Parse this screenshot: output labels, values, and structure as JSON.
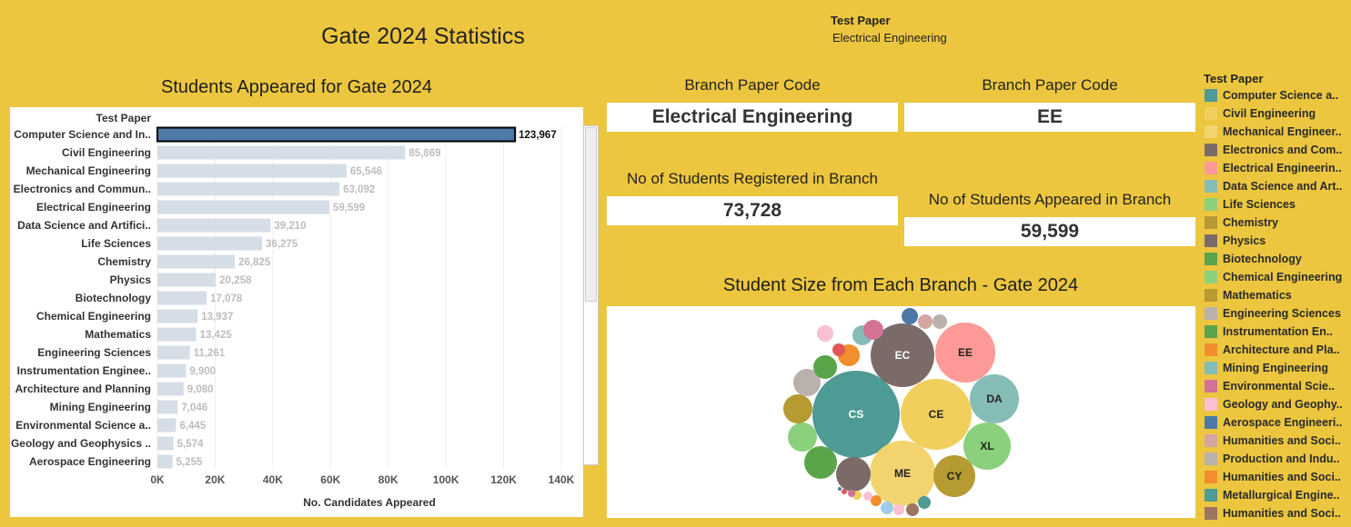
{
  "dashboard": {
    "title": "Gate 2024 Statistics",
    "filter_title": "Test Paper",
    "filter_value": "Electrical Engineering"
  },
  "bar_section": {
    "title": "Students Appeared for Gate 2024",
    "row_header": "Test Paper"
  },
  "kpi": {
    "label1": "Branch Paper Code",
    "value1": "Electrical Engineering",
    "label2": "Branch Paper Code",
    "value2": "EE",
    "label3": "No of Students Registered in Branch",
    "value3": "73,728",
    "label4": "No of Students Appeared in Branch",
    "value4": "59,599"
  },
  "bubble_section": {
    "title": "Student Size from Each Branch - Gate 2024"
  },
  "legend": {
    "title": "Test Paper",
    "items": [
      {
        "label": "Computer Science a..",
        "color": "#4e9a94"
      },
      {
        "label": "Civil Engineering",
        "color": "#f1cf5d"
      },
      {
        "label": "Mechanical Engineer..",
        "color": "#f2d36e"
      },
      {
        "label": "Electronics and Com..",
        "color": "#7a6b69"
      },
      {
        "label": "Electrical Engineerin..",
        "color": "#fd9a97"
      },
      {
        "label": "Data Science and Art..",
        "color": "#86bcb6"
      },
      {
        "label": "Life Sciences",
        "color": "#8bd17d"
      },
      {
        "label": "Chemistry",
        "color": "#b69a32"
      },
      {
        "label": "Physics",
        "color": "#7a6b69"
      },
      {
        "label": "Biotechnology",
        "color": "#5aa54a"
      },
      {
        "label": "Chemical Engineering",
        "color": "#8bd17d"
      },
      {
        "label": "Mathematics",
        "color": "#b69a32"
      },
      {
        "label": "Engineering Sciences",
        "color": "#bab0ac"
      },
      {
        "label": "Instrumentation En..",
        "color": "#5aa54a"
      },
      {
        "label": "Architecture and Pla..",
        "color": "#f28e2b"
      },
      {
        "label": "Mining Engineering",
        "color": "#86bcb6"
      },
      {
        "label": "Environmental Scie..",
        "color": "#d37295"
      },
      {
        "label": "Geology and Geophy..",
        "color": "#fabfd2"
      },
      {
        "label": "Aerospace Engineeri..",
        "color": "#4e79a7"
      },
      {
        "label": "Humanities and Soci..",
        "color": "#d4a6a0"
      },
      {
        "label": "Production and Indu..",
        "color": "#bab0ac"
      },
      {
        "label": "Humanities and Soci..",
        "color": "#f28e2b"
      },
      {
        "label": "Metallurgical Engine..",
        "color": "#4e9a94"
      },
      {
        "label": "Humanities and Soci..",
        "color": "#9c755f"
      }
    ]
  },
  "chart_data": [
    {
      "type": "bar",
      "orientation": "horizontal",
      "title": "Students Appeared for Gate 2024",
      "xlabel": "No. Candidates Appeared",
      "ylabel": "Test Paper",
      "xlim": [
        0,
        140000
      ],
      "xticks": [
        "0K",
        "20K",
        "40K",
        "60K",
        "80K",
        "100K",
        "120K",
        "140K"
      ],
      "categories": [
        "Computer Science and In..",
        "Civil Engineering",
        "Mechanical Engineering",
        "Electronics and Commun..",
        "Electrical Engineering",
        "Data Science and Artifici..",
        "Life Sciences",
        "Chemistry",
        "Physics",
        "Biotechnology",
        "Chemical Engineering",
        "Mathematics",
        "Engineering Sciences",
        "Instrumentation Enginee..",
        "Architecture and Planning",
        "Mining Engineering",
        "Environmental Science a..",
        "Geology and Geophysics ..",
        "Aerospace Engineering"
      ],
      "values": [
        123967,
        85869,
        65546,
        63092,
        59599,
        39210,
        36275,
        26825,
        20258,
        17078,
        13937,
        13425,
        11261,
        9900,
        9080,
        7046,
        6445,
        5574,
        5255
      ],
      "labels": [
        "123,967",
        "85,869",
        "65,546",
        "63,092",
        "59,599",
        "39,210",
        "36,275",
        "26,825",
        "20,258",
        "17,078",
        "13,937",
        "13,425",
        "11,261",
        "9,900",
        "9,080",
        "7,046",
        "6,445",
        "5,574",
        "5,255"
      ],
      "highlighted_index": 0,
      "highlight_color": "#4e79a7",
      "bar_color": "#d5dde6"
    },
    {
      "type": "bubble",
      "title": "Student Size from Each Branch - Gate 2024",
      "bubbles": [
        {
          "label": "CS",
          "color": "#4e9a94"
        },
        {
          "label": "CE",
          "color": "#f1cf5d"
        },
        {
          "label": "ME",
          "color": "#f2d36e"
        },
        {
          "label": "EC",
          "color": "#7a6b69"
        },
        {
          "label": "EE",
          "color": "#fd9a97"
        },
        {
          "label": "DA",
          "color": "#86bcb6"
        },
        {
          "label": "XL",
          "color": "#8bd17d"
        },
        {
          "label": "CY",
          "color": "#b69a32"
        },
        {
          "label": "",
          "color": "#7a6b69"
        },
        {
          "label": "",
          "color": "#5aa54a"
        },
        {
          "label": "",
          "color": "#8bd17d"
        },
        {
          "label": "",
          "color": "#b69a32"
        },
        {
          "label": "",
          "color": "#bab0ac"
        },
        {
          "label": "",
          "color": "#5aa54a"
        },
        {
          "label": "",
          "color": "#f28e2b"
        },
        {
          "label": "",
          "color": "#86bcb6"
        },
        {
          "label": "",
          "color": "#d37295"
        },
        {
          "label": "",
          "color": "#fabfd2"
        },
        {
          "label": "",
          "color": "#4e79a7"
        },
        {
          "label": "",
          "color": "#d4a6a0"
        },
        {
          "label": "",
          "color": "#bab0ac"
        },
        {
          "label": "",
          "color": "#e15759"
        },
        {
          "label": "",
          "color": "#a0cbe8"
        },
        {
          "label": "",
          "color": "#fabfd2"
        },
        {
          "label": "",
          "color": "#9c755f"
        },
        {
          "label": "",
          "color": "#4e9a94"
        },
        {
          "label": "",
          "color": "#f28e2b"
        },
        {
          "label": "",
          "color": "#fabfd2"
        },
        {
          "label": "",
          "color": "#f1cf5d"
        },
        {
          "label": "",
          "color": "#d37295"
        },
        {
          "label": "",
          "color": "#e15759"
        },
        {
          "label": "",
          "color": "#4e79a7"
        }
      ]
    }
  ]
}
